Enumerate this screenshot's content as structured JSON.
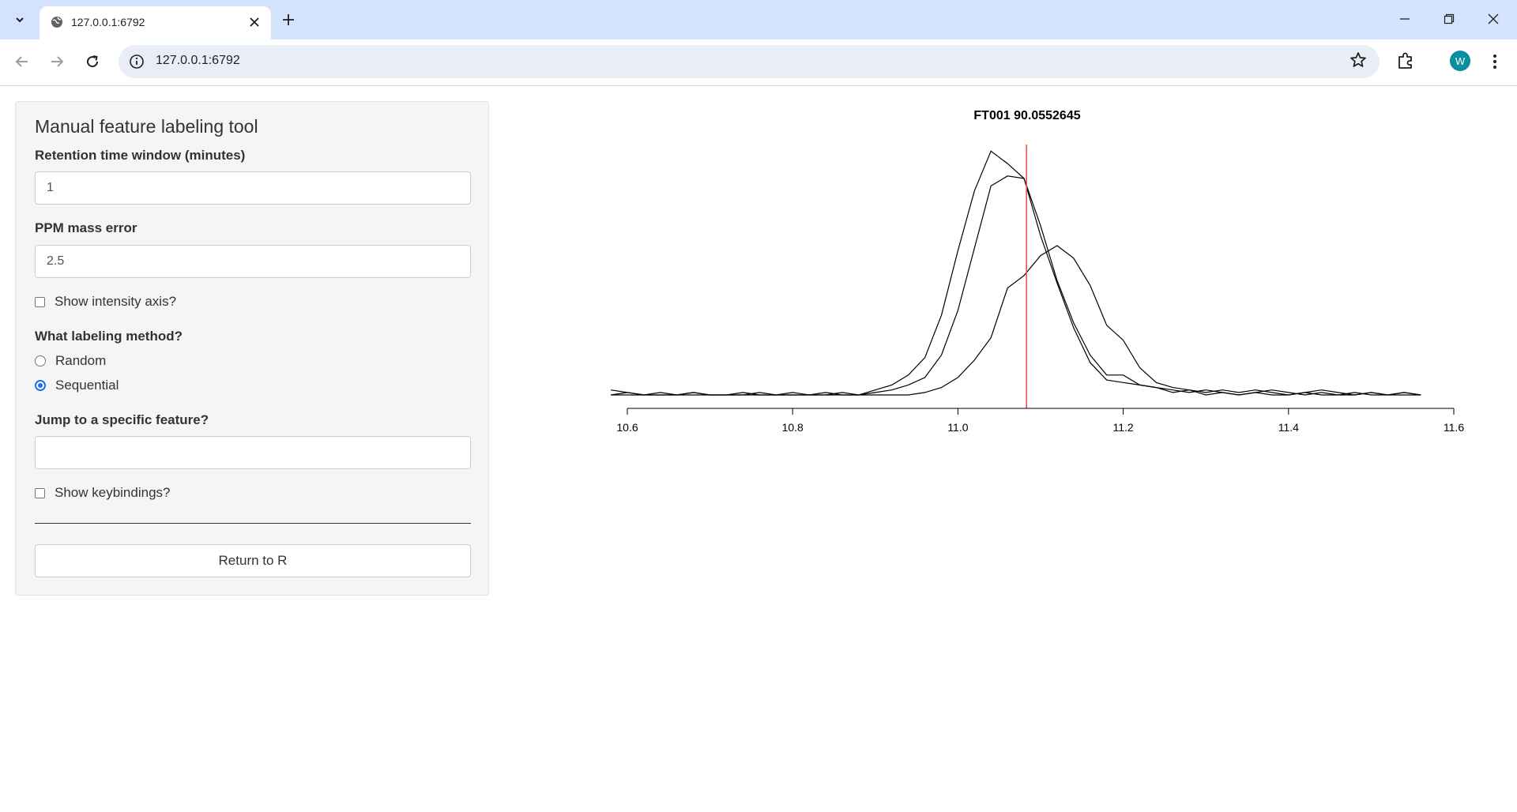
{
  "browser": {
    "tab_title": "127.0.0.1:6792",
    "url": "127.0.0.1:6792",
    "profile_initial": "W"
  },
  "sidebar": {
    "title": "Manual feature labeling tool",
    "rt_window": {
      "label": "Retention time window (minutes)",
      "value": "1"
    },
    "ppm_error": {
      "label": "PPM mass error",
      "value": "2.5"
    },
    "show_intensity": {
      "label": "Show intensity axis?",
      "checked": false
    },
    "labeling_method": {
      "label": "What labeling method?",
      "options": [
        {
          "label": "Random",
          "selected": false
        },
        {
          "label": "Sequential",
          "selected": true
        }
      ]
    },
    "jump_feature": {
      "label": "Jump to a specific feature?",
      "value": ""
    },
    "show_keybindings": {
      "label": "Show keybindings?",
      "checked": false
    },
    "return_button": "Return to R"
  },
  "chart_data": {
    "type": "line",
    "title": "FT001 90.0552645",
    "xlim": [
      10.6,
      11.6
    ],
    "x_ticks": [
      "10.6",
      "10.8",
      "11.0",
      "11.2",
      "11.4",
      "11.6"
    ],
    "marker_x": 11.083,
    "marker_color": "#e8534f",
    "series": [
      {
        "x": [
          10.58,
          10.6,
          10.62,
          10.64,
          10.66,
          10.68,
          10.7,
          10.72,
          10.74,
          10.76,
          10.78,
          10.8,
          10.82,
          10.84,
          10.86,
          10.88,
          10.9,
          10.92,
          10.94,
          10.96,
          10.98,
          11.0,
          11.02,
          11.04,
          11.06,
          11.08,
          11.1,
          11.12,
          11.14,
          11.16,
          11.18,
          11.2,
          11.22,
          11.24,
          11.26,
          11.28,
          11.3,
          11.32,
          11.34,
          11.36,
          11.38,
          11.4,
          11.42,
          11.44,
          11.46,
          11.48,
          11.5,
          11.52,
          11.54,
          11.56
        ],
        "y": [
          0.02,
          0.01,
          0.0,
          0.01,
          0.0,
          0.01,
          0.0,
          0.0,
          0.01,
          0.0,
          0.0,
          0.01,
          0.0,
          0.0,
          0.01,
          0.0,
          0.02,
          0.04,
          0.08,
          0.15,
          0.32,
          0.58,
          0.82,
          0.98,
          0.93,
          0.87,
          0.68,
          0.46,
          0.29,
          0.16,
          0.08,
          0.08,
          0.04,
          0.03,
          0.01,
          0.02,
          0.0,
          0.01,
          0.0,
          0.01,
          0.0,
          0.0,
          0.01,
          0.0,
          0.0,
          0.01,
          0.0,
          0.0,
          0.01,
          0.0
        ]
      },
      {
        "x": [
          10.58,
          10.6,
          10.62,
          10.64,
          10.66,
          10.68,
          10.7,
          10.72,
          10.74,
          10.76,
          10.78,
          10.8,
          10.82,
          10.84,
          10.86,
          10.88,
          10.9,
          10.92,
          10.94,
          10.96,
          10.98,
          11.0,
          11.02,
          11.04,
          11.06,
          11.08,
          11.1,
          11.12,
          11.14,
          11.16,
          11.18,
          11.2,
          11.22,
          11.24,
          11.26,
          11.28,
          11.3,
          11.32,
          11.34,
          11.36,
          11.38,
          11.4,
          11.42,
          11.44,
          11.46,
          11.48,
          11.5,
          11.52,
          11.54,
          11.56
        ],
        "y": [
          0.0,
          0.01,
          0.0,
          0.0,
          0.0,
          0.01,
          0.0,
          0.0,
          0.0,
          0.01,
          0.0,
          0.0,
          0.0,
          0.01,
          0.0,
          0.0,
          0.01,
          0.02,
          0.04,
          0.07,
          0.16,
          0.34,
          0.59,
          0.84,
          0.88,
          0.87,
          0.64,
          0.45,
          0.27,
          0.13,
          0.06,
          0.05,
          0.04,
          0.03,
          0.02,
          0.01,
          0.02,
          0.01,
          0.0,
          0.01,
          0.02,
          0.01,
          0.0,
          0.01,
          0.0,
          0.0,
          0.01,
          0.0,
          0.0,
          0.0
        ]
      },
      {
        "x": [
          10.58,
          10.6,
          10.62,
          10.64,
          10.66,
          10.68,
          10.7,
          10.72,
          10.74,
          10.76,
          10.78,
          10.8,
          10.82,
          10.84,
          10.86,
          10.88,
          10.9,
          10.92,
          10.94,
          10.96,
          10.98,
          11.0,
          11.02,
          11.04,
          11.06,
          11.08,
          11.1,
          11.12,
          11.14,
          11.16,
          11.18,
          11.2,
          11.22,
          11.24,
          11.26,
          11.28,
          11.3,
          11.32,
          11.34,
          11.36,
          11.38,
          11.4,
          11.42,
          11.44,
          11.46,
          11.48,
          11.5,
          11.52,
          11.54,
          11.56
        ],
        "y": [
          0.0,
          0.0,
          0.0,
          0.0,
          0.0,
          0.0,
          0.0,
          0.0,
          0.0,
          0.0,
          0.0,
          0.0,
          0.0,
          0.0,
          0.0,
          0.0,
          0.0,
          0.0,
          0.0,
          0.01,
          0.03,
          0.07,
          0.14,
          0.23,
          0.43,
          0.48,
          0.56,
          0.6,
          0.55,
          0.44,
          0.28,
          0.22,
          0.11,
          0.05,
          0.03,
          0.02,
          0.01,
          0.02,
          0.01,
          0.02,
          0.01,
          0.0,
          0.01,
          0.02,
          0.01,
          0.0,
          0.01,
          0.0,
          0.01,
          0.0
        ]
      }
    ]
  }
}
